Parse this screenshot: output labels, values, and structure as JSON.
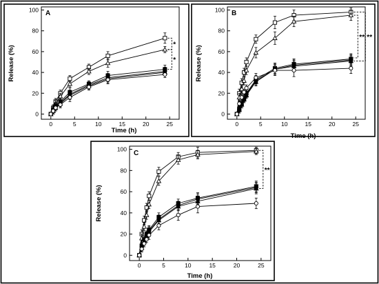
{
  "chart_data": [
    {
      "type": "line",
      "panel_label": "A",
      "xlabel": "Time (h)",
      "ylabel": "Release (%)",
      "xlim": [
        -2,
        27
      ],
      "ylim": [
        -5,
        103
      ],
      "xticks": [
        0,
        5,
        10,
        15,
        20,
        25
      ],
      "yticks": [
        0,
        20,
        40,
        60,
        80,
        100
      ],
      "x": [
        0,
        0.5,
        1,
        2,
        4,
        8,
        12,
        24
      ],
      "series": [
        {
          "marker": "square-open",
          "values": [
            0,
            6,
            12,
            20,
            34,
            45,
            56,
            73
          ],
          "errors": [
            0,
            3,
            3,
            3,
            3,
            3,
            4,
            5
          ]
        },
        {
          "marker": "triangle-open",
          "values": [
            0,
            5,
            10,
            17,
            29,
            41,
            49,
            62
          ],
          "errors": [
            0,
            3,
            3,
            3,
            3,
            3,
            4,
            3
          ]
        },
        {
          "marker": "square-filled",
          "values": [
            0,
            4,
            8,
            12,
            21,
            29,
            37,
            43
          ],
          "errors": [
            0,
            3,
            3,
            3,
            4,
            3,
            4,
            4
          ]
        },
        {
          "marker": "circle-filled",
          "values": [
            0,
            4,
            7,
            11,
            19,
            28,
            35,
            41
          ],
          "errors": [
            0,
            3,
            3,
            3,
            4,
            3,
            4,
            4
          ]
        },
        {
          "marker": "triangle-filled",
          "values": [
            0,
            3,
            6,
            10,
            18,
            27,
            34,
            40
          ],
          "errors": [
            0,
            3,
            3,
            3,
            4,
            3,
            4,
            3
          ]
        },
        {
          "marker": "circle-open",
          "values": [
            0,
            3,
            6,
            9,
            16,
            26,
            33,
            38
          ],
          "errors": [
            0,
            3,
            3,
            3,
            4,
            3,
            4,
            3
          ]
        }
      ],
      "annotations": [
        {
          "text": "*",
          "y_top": 73,
          "y_bottom": 62,
          "x_offset": 0
        },
        {
          "text": "*",
          "y_top": 62,
          "y_bottom": 43,
          "x_offset": 0
        }
      ]
    },
    {
      "type": "line",
      "panel_label": "B",
      "xlabel": "Time (h)",
      "ylabel": "Release (%)",
      "xlim": [
        -2,
        27
      ],
      "ylim": [
        -5,
        103
      ],
      "xticks": [
        0,
        5,
        10,
        15,
        20,
        25
      ],
      "yticks": [
        0,
        20,
        40,
        60,
        80,
        100
      ],
      "x": [
        0,
        0.5,
        1,
        1.5,
        2,
        4,
        8,
        12,
        24
      ],
      "series": [
        {
          "marker": "square-open",
          "values": [
            0,
            20,
            30,
            40,
            50,
            72,
            88,
            95,
            98
          ],
          "errors": [
            0,
            4,
            4,
            4,
            4,
            4,
            6,
            5,
            4
          ]
        },
        {
          "marker": "triangle-open",
          "values": [
            0,
            16,
            24,
            32,
            42,
            59,
            73,
            89,
            95
          ],
          "errors": [
            0,
            4,
            4,
            4,
            4,
            5,
            6,
            5,
            5
          ]
        },
        {
          "marker": "square-filled",
          "values": [
            0,
            5,
            10,
            15,
            20,
            33,
            44,
            48,
            53
          ],
          "errors": [
            0,
            3,
            3,
            3,
            3,
            4,
            5,
            5,
            5
          ]
        },
        {
          "marker": "circle-filled",
          "values": [
            0,
            4,
            9,
            14,
            19,
            32,
            43,
            47,
            52
          ],
          "errors": [
            0,
            3,
            3,
            3,
            3,
            4,
            5,
            5,
            5
          ]
        },
        {
          "marker": "triangle-filled",
          "values": [
            0,
            4,
            9,
            14,
            18,
            31,
            43,
            46,
            51
          ],
          "errors": [
            0,
            3,
            3,
            3,
            3,
            4,
            5,
            5,
            5
          ]
        },
        {
          "marker": "circle-open",
          "values": [
            0,
            10,
            16,
            21,
            25,
            35,
            42,
            42,
            44
          ],
          "errors": [
            0,
            3,
            3,
            3,
            3,
            4,
            5,
            6,
            5
          ]
        }
      ],
      "annotations": [
        {
          "text": "**",
          "y_top": 95,
          "y_bottom": 54,
          "x_offset": 0
        },
        {
          "text": "**",
          "y_top": 98,
          "y_bottom": 51,
          "x_offset": 11
        }
      ]
    },
    {
      "type": "line",
      "panel_label": "C",
      "xlabel": "Time (h)",
      "ylabel": "Release (%)",
      "xlim": [
        -2,
        27
      ],
      "ylim": [
        -5,
        103
      ],
      "xticks": [
        0,
        5,
        10,
        15,
        20,
        25
      ],
      "yticks": [
        0,
        20,
        40,
        60,
        80,
        100
      ],
      "x": [
        0,
        0.5,
        1,
        1.5,
        2,
        4,
        8,
        12,
        24
      ],
      "series": [
        {
          "marker": "square-open",
          "values": [
            0,
            20,
            33,
            45,
            56,
            79,
            93,
            97,
            99
          ],
          "errors": [
            0,
            4,
            4,
            4,
            4,
            4,
            4,
            5,
            3
          ]
        },
        {
          "marker": "triangle-open",
          "values": [
            0,
            16,
            27,
            38,
            48,
            70,
            90,
            95,
            98
          ],
          "errors": [
            0,
            4,
            4,
            4,
            4,
            4,
            4,
            4,
            3
          ]
        },
        {
          "marker": "square-filled",
          "values": [
            0,
            9,
            15,
            20,
            24,
            36,
            49,
            54,
            65
          ],
          "errors": [
            0,
            3,
            3,
            3,
            4,
            4,
            4,
            5,
            5
          ]
        },
        {
          "marker": "circle-filled",
          "values": [
            0,
            8,
            14,
            19,
            23,
            34,
            47,
            53,
            64
          ],
          "errors": [
            0,
            3,
            3,
            3,
            4,
            4,
            4,
            5,
            5
          ]
        },
        {
          "marker": "triangle-filled",
          "values": [
            0,
            7,
            13,
            18,
            22,
            33,
            46,
            51,
            63
          ],
          "errors": [
            0,
            3,
            3,
            3,
            4,
            4,
            4,
            5,
            5
          ]
        },
        {
          "marker": "circle-open",
          "values": [
            0,
            6,
            11,
            15,
            19,
            28,
            38,
            46,
            49
          ],
          "errors": [
            0,
            3,
            3,
            3,
            4,
            4,
            5,
            6,
            5
          ]
        }
      ],
      "annotations": [
        {
          "text": "**",
          "y_top": 99,
          "y_bottom": 63,
          "x_offset": 0
        }
      ]
    }
  ]
}
